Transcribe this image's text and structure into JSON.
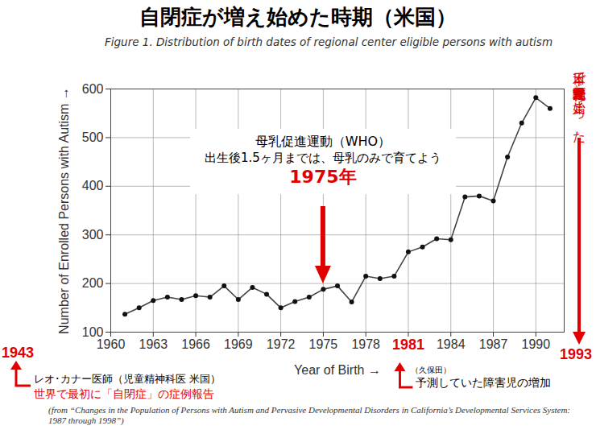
{
  "chart_data": {
    "type": "line",
    "title": "自閉症が増え始めた時期（米国）",
    "subtitle": "Figure 1. Distribution of birth dates of regional center eligible persons with autism",
    "xlabel": "Year of Birth",
    "ylabel": "Number of Enrolled Persons with Autism",
    "x": [
      1961,
      1962,
      1963,
      1964,
      1965,
      1966,
      1967,
      1968,
      1969,
      1970,
      1971,
      1972,
      1973,
      1974,
      1975,
      1976,
      1977,
      1978,
      1979,
      1980,
      1981,
      1982,
      1983,
      1984,
      1985,
      1986,
      1987,
      1988,
      1989,
      1990,
      1991
    ],
    "values": [
      137,
      150,
      165,
      172,
      167,
      175,
      172,
      195,
      167,
      192,
      178,
      150,
      163,
      172,
      188,
      195,
      162,
      215,
      210,
      215,
      265,
      275,
      292,
      290,
      378,
      380,
      370,
      460,
      530,
      582,
      560
    ],
    "color": "#444444",
    "marker": "circle",
    "grid": true,
    "xlim": [
      1960,
      1992
    ],
    "xticks": [
      1960,
      1963,
      1966,
      1969,
      1972,
      1975,
      1978,
      1981,
      1984,
      1987,
      1990
    ],
    "ylim": [
      100,
      600
    ],
    "yticks": [
      100,
      200,
      300,
      400,
      500,
      600
    ],
    "annotations": [
      {
        "x": 1975,
        "text": [
          "母乳促進運動（WHO）",
          "出生後1.5ヶ月までは、母乳のみで育てよう",
          "1975年"
        ]
      },
      {
        "year": 1943,
        "text": [
          "レオ･カナー医師（児童精神科医 米国）",
          "世界で最初に「自閉症」の症例報告"
        ]
      },
      {
        "year": 1981,
        "text": [
          "（久保田）",
          "予測していた障害児の増加"
        ]
      },
      {
        "year": 1993,
        "text": [
          "日本で『母乳育児推進運動』が始まった"
        ]
      }
    ],
    "source": "(from “Changes in the Population of Persons with Autism and Pervasive Developmental Disorders in California’s Developmental Services System: 1987 through 1998”)"
  }
}
